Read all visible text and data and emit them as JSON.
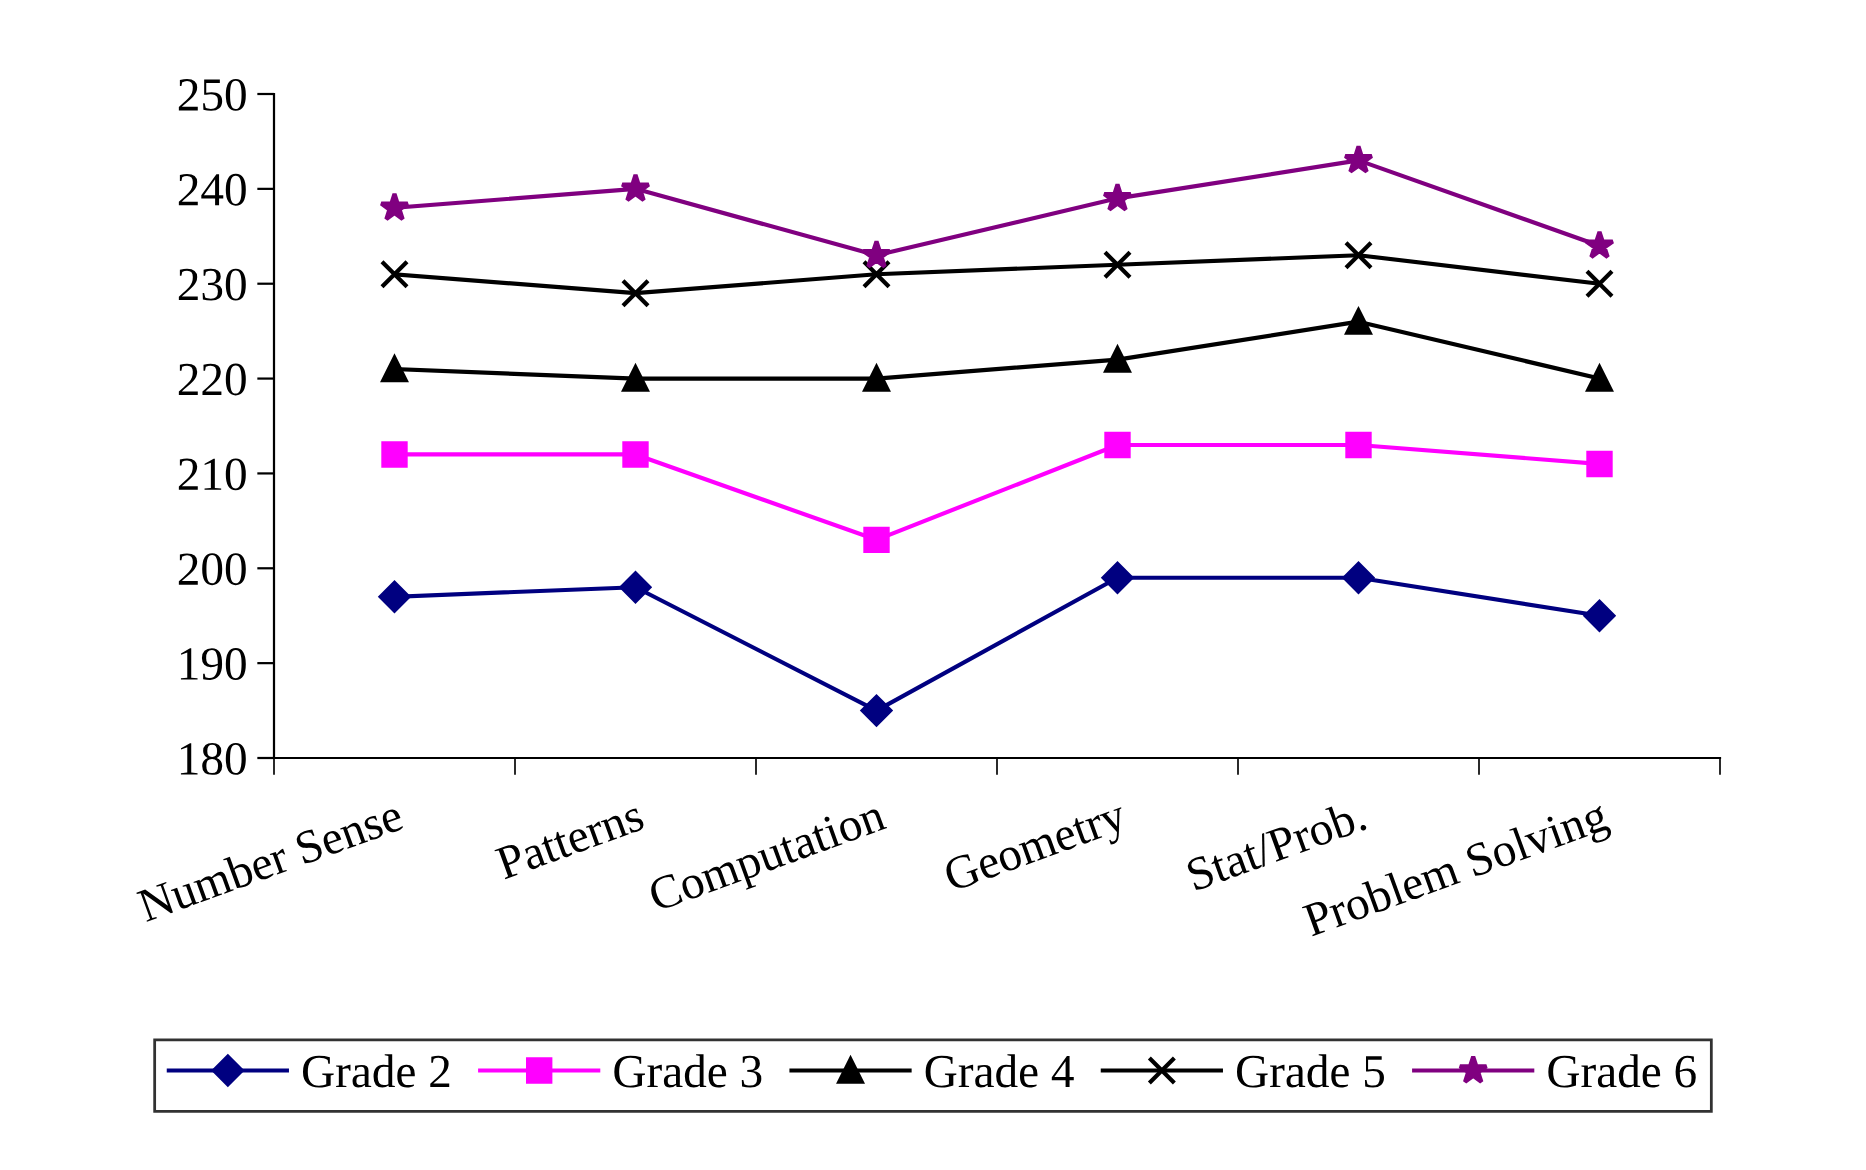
{
  "chart_data": {
    "type": "line",
    "categories": [
      "Number Sense",
      "Patterns",
      "Computation",
      "Geometry",
      "Stat/Prob.",
      "Problem Solving"
    ],
    "series": [
      {
        "name": "Grade 2",
        "color": "#000080",
        "marker": "diamond",
        "values": [
          197,
          198,
          185,
          199,
          199,
          195
        ]
      },
      {
        "name": "Grade 3",
        "color": "#ff00ff",
        "marker": "square",
        "values": [
          212,
          212,
          203,
          213,
          213,
          211
        ]
      },
      {
        "name": "Grade 4",
        "color": "#000000",
        "marker": "triangle",
        "values": [
          221,
          220,
          220,
          222,
          226,
          220
        ]
      },
      {
        "name": "Grade 5",
        "color": "#000000",
        "marker": "cross",
        "values": [
          231,
          229,
          231,
          232,
          233,
          230
        ]
      },
      {
        "name": "Grade 6",
        "color": "#800080",
        "marker": "star",
        "values": [
          238,
          240,
          233,
          239,
          243,
          234
        ]
      }
    ],
    "ylim": [
      180,
      250
    ],
    "yticks": [
      180,
      190,
      200,
      210,
      220,
      230,
      240,
      250
    ],
    "grid": false,
    "legend": "bottom",
    "line_style": "solid"
  }
}
